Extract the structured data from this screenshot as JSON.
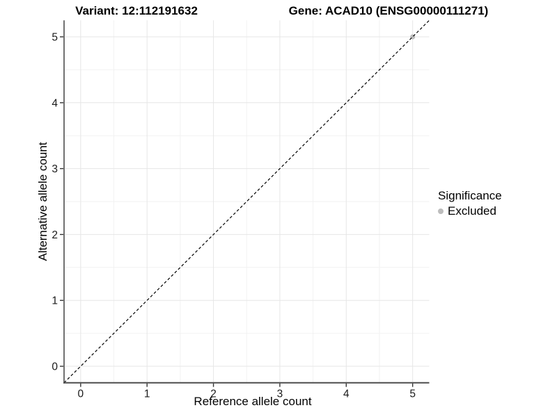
{
  "header": {
    "variant_title": "Variant: 12:112191632",
    "gene_title": "Gene: ACAD10 (ENSG00000111271)"
  },
  "chart_data": {
    "type": "scatter",
    "xlabel": "Reference allele count",
    "ylabel": "Alternative allele count",
    "xlim": [
      -0.25,
      5.25
    ],
    "ylim": [
      -0.25,
      5.25
    ],
    "xticks": [
      0,
      1,
      2,
      3,
      4,
      5
    ],
    "yticks": [
      0,
      1,
      2,
      3,
      4,
      5
    ],
    "x_minor": [
      0.5,
      1.5,
      2.5,
      3.5,
      4.5
    ],
    "y_minor": [
      0.5,
      1.5,
      2.5,
      3.5,
      4.5
    ],
    "grid": "major-and-minor",
    "identity_line": {
      "style": "dashed",
      "slope": 1,
      "intercept": 0,
      "color": "#000000"
    },
    "series": [
      {
        "name": "Excluded",
        "marker": "circle",
        "color": "#bdbdbd",
        "points": [
          {
            "x": 5,
            "y": 5
          }
        ]
      }
    ],
    "legend": {
      "title": "Significance",
      "position": "right",
      "items": [
        {
          "label": "Excluded",
          "color": "#bdbdbd",
          "marker": "circle"
        }
      ]
    }
  },
  "colors": {
    "background": "#ffffff",
    "grid_major": "#e6e6e6",
    "grid_minor": "#f2f2f2",
    "axis_line": "#4d4d4d",
    "tick_mark": "#333333",
    "tick_label": "#1a1a1a",
    "identity_line": "#000000",
    "excluded_point": "#bdbdbd"
  }
}
